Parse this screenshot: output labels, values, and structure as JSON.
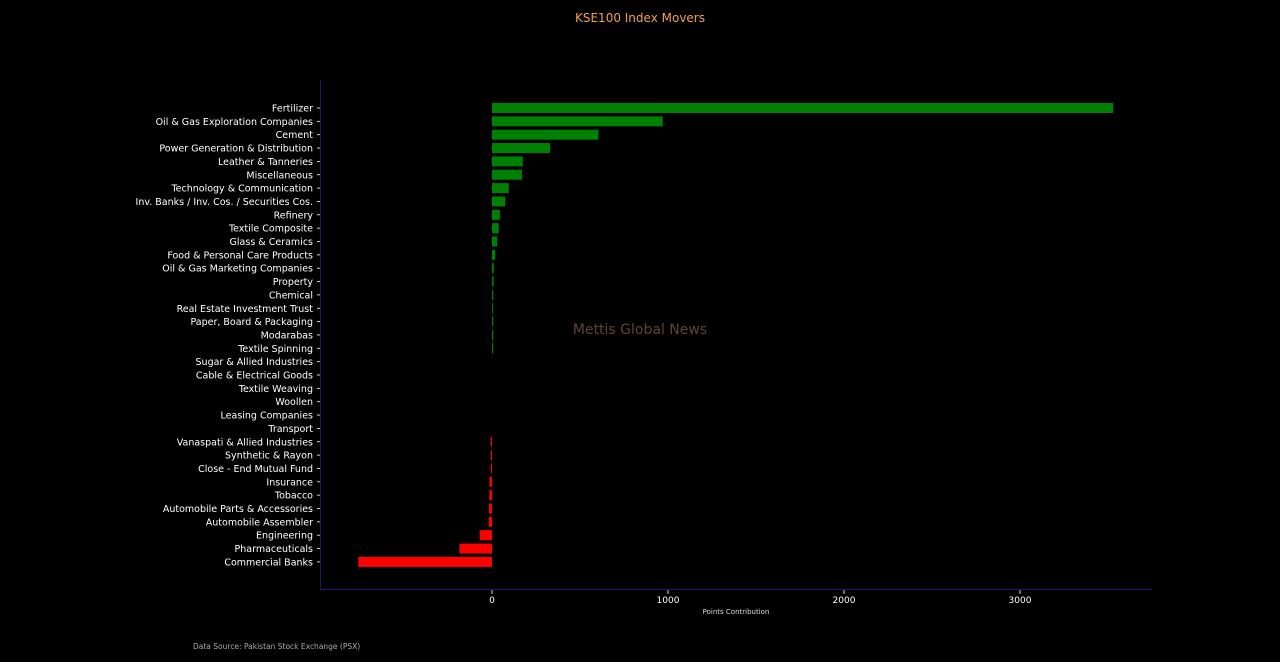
{
  "chart_data": {
    "type": "bar",
    "orientation": "horizontal",
    "title": "KSE100 Index Movers",
    "xlabel": "Points Contribution",
    "ylabel": "",
    "xlim": [
      -970,
      3750
    ],
    "xticks": [
      0,
      1000,
      2000,
      3000
    ],
    "grid": false,
    "legend": "none",
    "colors": {
      "positive": "#008000",
      "negative": "#ff0000",
      "background": "#000000",
      "axis": "#1a1a6e"
    },
    "categories": [
      "Fertilizer",
      "Oil & Gas Exploration Companies",
      "Cement",
      "Power Generation & Distribution",
      "Leather & Tanneries",
      "Miscellaneous",
      "Technology & Communication",
      "Inv. Banks / Inv. Cos. / Securities Cos.",
      "Refinery",
      "Textile Composite",
      "Glass & Ceramics",
      "Food & Personal Care Products",
      "Oil & Gas Marketing Companies",
      "Property",
      "Chemical",
      "Real Estate Investment Trust",
      "Paper, Board & Packaging",
      "Modarabas",
      "Textile Spinning",
      "Sugar & Allied Industries",
      "Cable & Electrical Goods",
      "Textile Weaving",
      "Woollen",
      "Leasing Companies",
      "Transport",
      "Vanaspati & Allied Industries",
      "Synthetic & Rayon",
      "Close - End Mutual Fund",
      "Insurance",
      "Tobacco",
      "Automobile Parts & Accessories",
      "Automobile Assembler",
      "Engineering",
      "Pharmaceuticals",
      "Commercial Banks"
    ],
    "values": [
      3530,
      970,
      605,
      330,
      175,
      170,
      95,
      75,
      45,
      38,
      30,
      18,
      10,
      9,
      7,
      6,
      5,
      4,
      3,
      0,
      0,
      0,
      0,
      0,
      0,
      -4,
      -5,
      -6,
      -14,
      -15,
      -17,
      -18,
      -70,
      -185,
      -760
    ]
  },
  "watermark": "Mettis Global News",
  "source": "Data Source: Pakistan Stock Exchange (PSX)"
}
